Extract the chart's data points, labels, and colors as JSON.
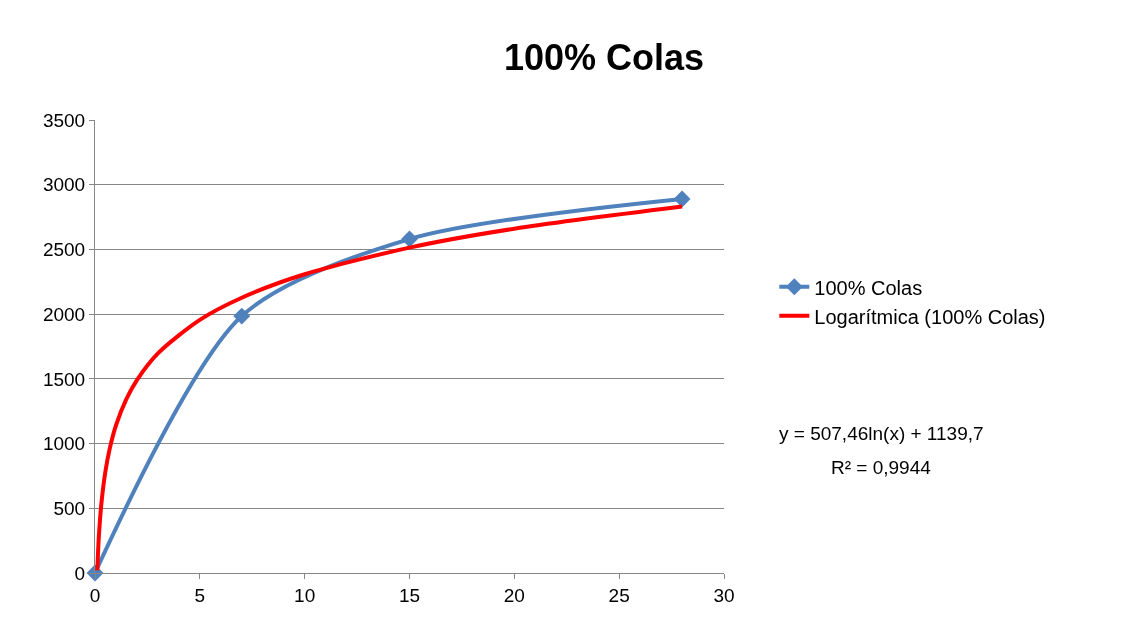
{
  "chart_data": {
    "type": "line",
    "title": "100% Colas",
    "xlim": [
      0,
      30
    ],
    "xticks": [
      0,
      5,
      10,
      15,
      20,
      25,
      30
    ],
    "ylim": [
      0,
      3500
    ],
    "yticks": [
      0,
      500,
      1000,
      1500,
      2000,
      2500,
      3000,
      3500
    ],
    "grid": "y",
    "legend": "right",
    "series": [
      {
        "name": "100% Colas",
        "color": "#4f81bd",
        "x": [
          0,
          7,
          15,
          28
        ],
        "values": [
          0,
          1985,
          2580,
          2890
        ],
        "marker": "diamond"
      },
      {
        "name": "Logarítmica (100% Colas)",
        "color": "#ff0000",
        "x": [
          0.11,
          0.15,
          0.2,
          0.3,
          0.5,
          0.7,
          1,
          1.5,
          2,
          3,
          5,
          7,
          10,
          15,
          20,
          28
        ],
        "values": [
          20,
          177,
          323,
          529,
          788,
          959,
          1140,
          1345,
          1491,
          1697,
          1956,
          2127,
          2308,
          2514,
          2660,
          2831
        ],
        "marker": "none"
      }
    ],
    "annotations": [
      "y = 507,46ln(x) + 1139,7",
      "R² = 0,9944"
    ]
  }
}
